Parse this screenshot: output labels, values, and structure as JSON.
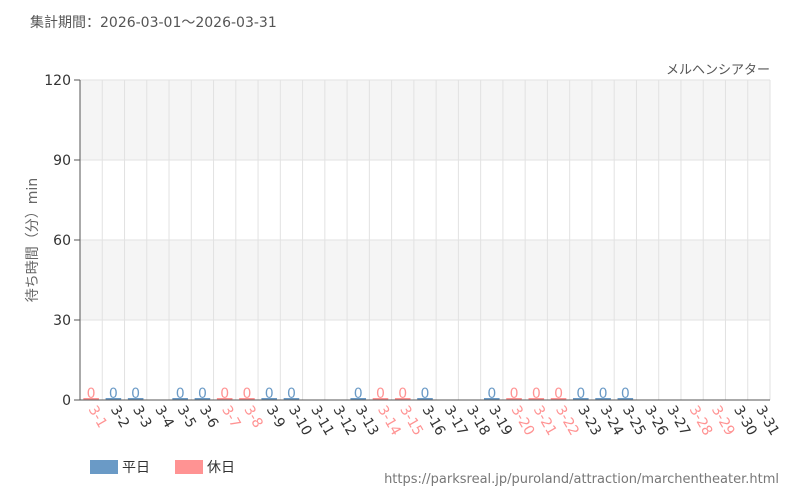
{
  "period_label": "集計期間：2026-03-01～2026-03-31",
  "source_url": "https://parksreal.jp/puroland/attraction/marchentheater.html",
  "colors": {
    "weekday": "#6a9ac6",
    "holiday": "#ff9393",
    "band": "#f5f5f5",
    "grid": "#e2e2e2",
    "axis": "#555555"
  },
  "legend": [
    {
      "label": "平日",
      "color": "#6a9ac6"
    },
    {
      "label": "休日",
      "color": "#ff9393"
    }
  ],
  "chart_data": {
    "type": "bar",
    "title": "メルヘンシアター",
    "ylabel": "待ち時間（分）min",
    "ylim": [
      0,
      120
    ],
    "yticks": [
      0,
      30,
      60,
      90,
      120
    ],
    "grid": true,
    "legend_position": "bottom-left",
    "categories": [
      "3-1",
      "3-2",
      "3-3",
      "3-4",
      "3-5",
      "3-6",
      "3-7",
      "3-8",
      "3-9",
      "3-10",
      "3-11",
      "3-12",
      "3-13",
      "3-14",
      "3-15",
      "3-16",
      "3-17",
      "3-18",
      "3-19",
      "3-20",
      "3-21",
      "3-22",
      "3-23",
      "3-24",
      "3-25",
      "3-26",
      "3-27",
      "3-28",
      "3-29",
      "3-30",
      "3-31"
    ],
    "category_type": [
      "holiday",
      "weekday",
      "weekday",
      "weekday",
      "weekday",
      "weekday",
      "holiday",
      "holiday",
      "weekday",
      "weekday",
      "weekday",
      "weekday",
      "weekday",
      "holiday",
      "holiday",
      "weekday",
      "weekday",
      "weekday",
      "weekday",
      "holiday",
      "holiday",
      "holiday",
      "weekday",
      "weekday",
      "weekday",
      "weekday",
      "weekday",
      "holiday",
      "holiday",
      "weekday",
      "weekday"
    ],
    "values": [
      0,
      0,
      0,
      null,
      0,
      0,
      0,
      0,
      0,
      0,
      null,
      null,
      0,
      0,
      0,
      0,
      null,
      null,
      0,
      0,
      0,
      0,
      0,
      0,
      0,
      null,
      null,
      null,
      null,
      null,
      null
    ],
    "data_labels": [
      "0",
      "0",
      "0",
      "",
      "0",
      "0",
      "0",
      "0",
      "0",
      "0",
      "",
      "",
      "0",
      "0",
      "0",
      "0",
      "",
      "",
      "0",
      "0",
      "0",
      "0",
      "0",
      "0",
      "0",
      "",
      "",
      "",
      "",
      "",
      ""
    ]
  }
}
